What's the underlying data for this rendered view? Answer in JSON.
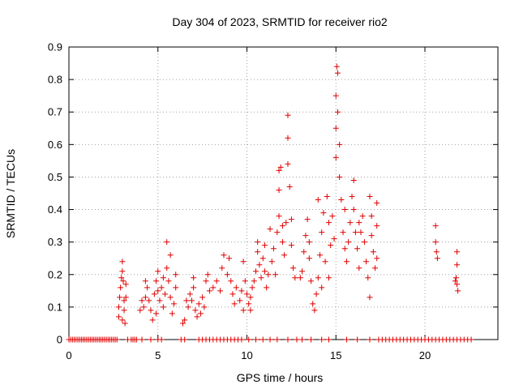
{
  "chart_data": {
    "type": "scatter",
    "title": "Day 304 of 2023, SRMTID for receiver rio2",
    "xlabel": "GPS time / hours",
    "ylabel": "SRMTID / TECUs",
    "xlim": [
      0,
      24.1
    ],
    "ylim": [
      0,
      0.9
    ],
    "x_ticks": [
      0,
      5,
      10,
      15,
      20
    ],
    "y_ticks": [
      0,
      0.1,
      0.2,
      0.3,
      0.4,
      0.5,
      0.6,
      0.7,
      0.8,
      0.9
    ],
    "x_tick_labels": [
      "0",
      "5",
      "10",
      "15",
      "20"
    ],
    "y_tick_labels": [
      "0",
      "0.1",
      "0.2",
      "0.3",
      "0.4",
      "0.5",
      "0.6",
      "0.7",
      "0.8",
      "0.9"
    ],
    "grid": true,
    "marker": "+",
    "color": "#e00000",
    "series": [
      {
        "name": "SRMTID",
        "points": [
          [
            0.0,
            0
          ],
          [
            0.1,
            0
          ],
          [
            0.2,
            0
          ],
          [
            0.3,
            0
          ],
          [
            0.4,
            0
          ],
          [
            0.5,
            0
          ],
          [
            0.6,
            0
          ],
          [
            0.7,
            0
          ],
          [
            0.8,
            0
          ],
          [
            0.9,
            0
          ],
          [
            1.0,
            0
          ],
          [
            1.1,
            0
          ],
          [
            1.2,
            0
          ],
          [
            1.3,
            0
          ],
          [
            1.4,
            0
          ],
          [
            1.5,
            0
          ],
          [
            1.6,
            0
          ],
          [
            1.7,
            0
          ],
          [
            1.8,
            0
          ],
          [
            1.9,
            0
          ],
          [
            2.0,
            0
          ],
          [
            2.1,
            0
          ],
          [
            2.2,
            0
          ],
          [
            2.3,
            0
          ],
          [
            2.4,
            0
          ],
          [
            2.5,
            0
          ],
          [
            2.6,
            0
          ],
          [
            2.7,
            0
          ],
          [
            3.3,
            0
          ],
          [
            3.5,
            0
          ],
          [
            3.6,
            0
          ],
          [
            3.7,
            0
          ],
          [
            3.8,
            0
          ],
          [
            4.1,
            0
          ],
          [
            4.6,
            0
          ],
          [
            5.0,
            0
          ],
          [
            5.2,
            0
          ],
          [
            6.3,
            0
          ],
          [
            6.5,
            0
          ],
          [
            7.3,
            0
          ],
          [
            7.5,
            0
          ],
          [
            7.7,
            0
          ],
          [
            7.9,
            0
          ],
          [
            8.1,
            0
          ],
          [
            8.3,
            0
          ],
          [
            8.5,
            0
          ],
          [
            8.7,
            0
          ],
          [
            8.9,
            0
          ],
          [
            9.1,
            0
          ],
          [
            9.3,
            0
          ],
          [
            9.5,
            0
          ],
          [
            9.7,
            0
          ],
          [
            10.1,
            0
          ],
          [
            10.5,
            0
          ],
          [
            10.9,
            0
          ],
          [
            11.3,
            0
          ],
          [
            11.7,
            0
          ],
          [
            12.3,
            0
          ],
          [
            12.8,
            0
          ],
          [
            13.1,
            0
          ],
          [
            13.6,
            0
          ],
          [
            14.2,
            0
          ],
          [
            14.6,
            0
          ],
          [
            15.6,
            0
          ],
          [
            16.2,
            0
          ],
          [
            16.9,
            0
          ],
          [
            17.4,
            0
          ],
          [
            17.6,
            0
          ],
          [
            17.8,
            0
          ],
          [
            18.0,
            0
          ],
          [
            18.2,
            0
          ],
          [
            18.4,
            0
          ],
          [
            18.6,
            0
          ],
          [
            18.8,
            0
          ],
          [
            19.0,
            0
          ],
          [
            19.2,
            0
          ],
          [
            19.4,
            0
          ],
          [
            19.6,
            0
          ],
          [
            19.8,
            0
          ],
          [
            20.0,
            0
          ],
          [
            20.2,
            0
          ],
          [
            20.4,
            0
          ],
          [
            20.6,
            0
          ],
          [
            20.8,
            0
          ],
          [
            21.0,
            0
          ],
          [
            21.2,
            0
          ],
          [
            21.4,
            0
          ],
          [
            21.6,
            0
          ],
          [
            21.8,
            0
          ],
          [
            22.0,
            0
          ],
          [
            22.2,
            0
          ],
          [
            22.4,
            0
          ],
          [
            22.6,
            0
          ],
          [
            2.8,
            0.07
          ],
          [
            2.8,
            0.1
          ],
          [
            2.85,
            0.13
          ],
          [
            2.9,
            0.16
          ],
          [
            2.95,
            0.19
          ],
          [
            3.0,
            0.21
          ],
          [
            3.0,
            0.24
          ],
          [
            3.05,
            0.18
          ],
          [
            3.1,
            0.12
          ],
          [
            3.1,
            0.09
          ],
          [
            3.15,
            0.05
          ],
          [
            3.2,
            0.13
          ],
          [
            3.2,
            0.17
          ],
          [
            3.0,
            0.06
          ],
          [
            4.0,
            0.09
          ],
          [
            4.1,
            0.12
          ],
          [
            4.2,
            0.1
          ],
          [
            4.3,
            0.13
          ],
          [
            4.4,
            0.16
          ],
          [
            4.5,
            0.12
          ],
          [
            4.6,
            0.09
          ],
          [
            4.7,
            0.06
          ],
          [
            4.8,
            0.14
          ],
          [
            4.9,
            0.18
          ],
          [
            5.0,
            0.21
          ],
          [
            5.0,
            0.15
          ],
          [
            5.1,
            0.12
          ],
          [
            5.2,
            0.16
          ],
          [
            5.3,
            0.1
          ],
          [
            5.4,
            0.14
          ],
          [
            5.5,
            0.22
          ],
          [
            5.5,
            0.3
          ],
          [
            5.6,
            0.18
          ],
          [
            5.7,
            0.13
          ],
          [
            5.8,
            0.08
          ],
          [
            5.9,
            0.11
          ],
          [
            6.0,
            0.16
          ],
          [
            6.0,
            0.2
          ],
          [
            4.3,
            0.18
          ],
          [
            4.9,
            0.08
          ],
          [
            5.3,
            0.19
          ],
          [
            5.7,
            0.26
          ],
          [
            6.4,
            0.05
          ],
          [
            6.5,
            0.06
          ],
          [
            6.7,
            0.1
          ],
          [
            6.8,
            0.14
          ],
          [
            6.9,
            0.12
          ],
          [
            7.0,
            0.16
          ],
          [
            7.0,
            0.19
          ],
          [
            7.1,
            0.09
          ],
          [
            7.2,
            0.07
          ],
          [
            7.3,
            0.11
          ],
          [
            7.5,
            0.13
          ],
          [
            7.6,
            0.1
          ],
          [
            7.7,
            0.18
          ],
          [
            7.8,
            0.2
          ],
          [
            7.9,
            0.15
          ],
          [
            8.1,
            0.16
          ],
          [
            8.3,
            0.18
          ],
          [
            8.5,
            0.15
          ],
          [
            8.6,
            0.22
          ],
          [
            8.7,
            0.26
          ],
          [
            8.9,
            0.2
          ],
          [
            9.0,
            0.25
          ],
          [
            9.1,
            0.18
          ],
          [
            9.2,
            0.14
          ],
          [
            9.3,
            0.11
          ],
          [
            9.4,
            0.16
          ],
          [
            6.6,
            0.12
          ],
          [
            7.4,
            0.08
          ],
          [
            9.6,
            0.12
          ],
          [
            9.7,
            0.15
          ],
          [
            9.8,
            0.09
          ],
          [
            9.9,
            0.18
          ],
          [
            10.0,
            0.14
          ],
          [
            10.1,
            0.11
          ],
          [
            10.2,
            0.13
          ],
          [
            10.3,
            0.16
          ],
          [
            10.4,
            0.18
          ],
          [
            10.5,
            0.21
          ],
          [
            10.6,
            0.27
          ],
          [
            10.6,
            0.3
          ],
          [
            10.7,
            0.23
          ],
          [
            10.8,
            0.19
          ],
          [
            10.9,
            0.25
          ],
          [
            11.0,
            0.29
          ],
          [
            11.1,
            0.16
          ],
          [
            11.2,
            0.2
          ],
          [
            11.3,
            0.34
          ],
          [
            11.4,
            0.24
          ],
          [
            11.5,
            0.28
          ],
          [
            11.6,
            0.2
          ],
          [
            11.7,
            0.33
          ],
          [
            11.8,
            0.38
          ],
          [
            11.8,
            0.46
          ],
          [
            11.8,
            0.52
          ],
          [
            11.9,
            0.53
          ],
          [
            12.0,
            0.3
          ],
          [
            12.1,
            0.26
          ],
          [
            12.2,
            0.36
          ],
          [
            12.3,
            0.54
          ],
          [
            12.3,
            0.62
          ],
          [
            12.3,
            0.69
          ],
          [
            12.4,
            0.47
          ],
          [
            12.5,
            0.37
          ],
          [
            12.5,
            0.29
          ],
          [
            12.6,
            0.22
          ],
          [
            12.7,
            0.19
          ],
          [
            9.8,
            0.24
          ],
          [
            10.2,
            0.09
          ],
          [
            11.0,
            0.21
          ],
          [
            12.0,
            0.35
          ],
          [
            13.0,
            0.19
          ],
          [
            13.1,
            0.21
          ],
          [
            13.2,
            0.27
          ],
          [
            13.3,
            0.32
          ],
          [
            13.4,
            0.37
          ],
          [
            13.5,
            0.25
          ],
          [
            13.6,
            0.18
          ],
          [
            13.7,
            0.11
          ],
          [
            13.8,
            0.09
          ],
          [
            13.9,
            0.14
          ],
          [
            14.0,
            0.19
          ],
          [
            14.1,
            0.26
          ],
          [
            14.2,
            0.33
          ],
          [
            14.3,
            0.39
          ],
          [
            14.4,
            0.24
          ],
          [
            14.5,
            0.44
          ],
          [
            14.6,
            0.36
          ],
          [
            14.7,
            0.29
          ],
          [
            14.8,
            0.38
          ],
          [
            14.9,
            0.31
          ],
          [
            15.0,
            0.56
          ],
          [
            15.0,
            0.65
          ],
          [
            15.0,
            0.75
          ],
          [
            15.05,
            0.84
          ],
          [
            15.1,
            0.82
          ],
          [
            15.1,
            0.7
          ],
          [
            15.2,
            0.6
          ],
          [
            15.2,
            0.5
          ],
          [
            15.3,
            0.43
          ],
          [
            15.4,
            0.33
          ],
          [
            15.5,
            0.28
          ],
          [
            15.6,
            0.24
          ],
          [
            15.7,
            0.3
          ],
          [
            15.8,
            0.36
          ],
          [
            15.9,
            0.44
          ],
          [
            16.0,
            0.49
          ],
          [
            16.0,
            0.4
          ],
          [
            16.1,
            0.33
          ],
          [
            16.2,
            0.28
          ],
          [
            16.3,
            0.22
          ],
          [
            16.4,
            0.33
          ],
          [
            16.5,
            0.38
          ],
          [
            16.6,
            0.3
          ],
          [
            16.7,
            0.24
          ],
          [
            16.8,
            0.19
          ],
          [
            16.9,
            0.13
          ],
          [
            16.9,
            0.44
          ],
          [
            17.0,
            0.32
          ],
          [
            17.0,
            0.38
          ],
          [
            17.1,
            0.27
          ],
          [
            17.2,
            0.22
          ],
          [
            17.3,
            0.42
          ],
          [
            17.3,
            0.35
          ],
          [
            17.3,
            0.25
          ],
          [
            14.0,
            0.43
          ],
          [
            14.6,
            0.19
          ],
          [
            15.5,
            0.4
          ],
          [
            16.3,
            0.36
          ],
          [
            13.5,
            0.3
          ],
          [
            14.2,
            0.16
          ],
          [
            20.6,
            0.35
          ],
          [
            20.6,
            0.3
          ],
          [
            20.65,
            0.27
          ],
          [
            20.7,
            0.25
          ],
          [
            21.8,
            0.27
          ],
          [
            21.8,
            0.23
          ],
          [
            21.75,
            0.19
          ],
          [
            21.8,
            0.17
          ],
          [
            21.85,
            0.15
          ],
          [
            21.7,
            0.18
          ]
        ]
      }
    ]
  }
}
